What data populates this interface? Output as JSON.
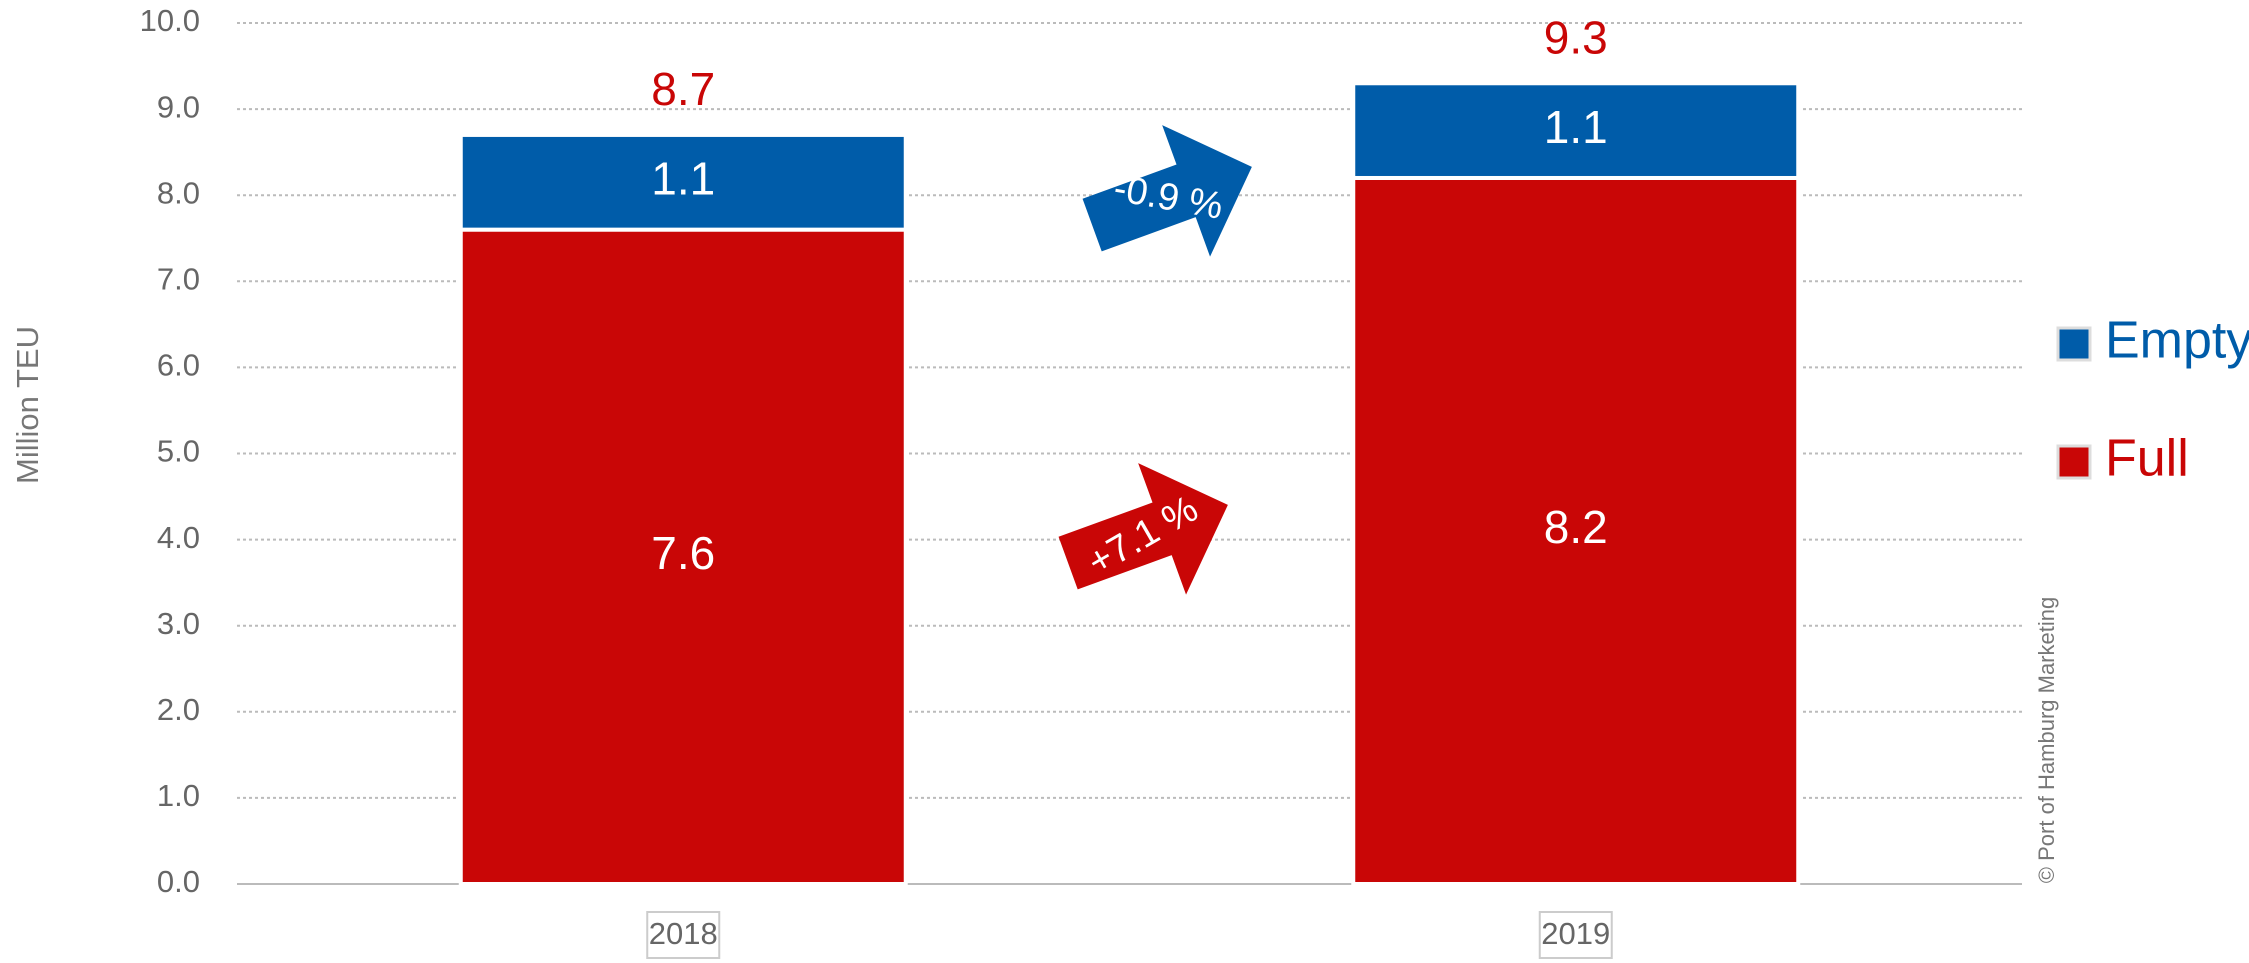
{
  "chart_data": {
    "type": "stacked_bar",
    "y_label": "Million TEU",
    "categories": [
      "2018",
      "2019"
    ],
    "series": [
      {
        "name": "Full",
        "color": "#c90606",
        "values": [
          7.6,
          8.2
        ]
      },
      {
        "name": "Empty",
        "color": "#005ca9",
        "values": [
          1.1,
          1.1
        ]
      }
    ],
    "totals": [
      8.7,
      9.3
    ],
    "totals_color": "#c90606",
    "annotations": [
      "-0.9 %",
      "+7.1 %"
    ],
    "credit": "© Port of Hamburg Marketing",
    "ylim": [
      0,
      10
    ],
    "yticks": [
      {
        "value": 0,
        "label": "0.0"
      },
      {
        "value": 1,
        "label": "1.0"
      },
      {
        "value": 2,
        "label": "2.0"
      },
      {
        "value": 3,
        "label": "3.0"
      },
      {
        "value": 4,
        "label": "4.0"
      },
      {
        "value": 5,
        "label": "5.0"
      },
      {
        "value": 6,
        "label": "6.0"
      },
      {
        "value": 7,
        "label": "7.0"
      },
      {
        "value": 8,
        "label": "8.0"
      },
      {
        "value": 9,
        "label": "9.0"
      },
      {
        "value": 10,
        "label": "10.0"
      }
    ],
    "grid": true,
    "legend": "right"
  }
}
